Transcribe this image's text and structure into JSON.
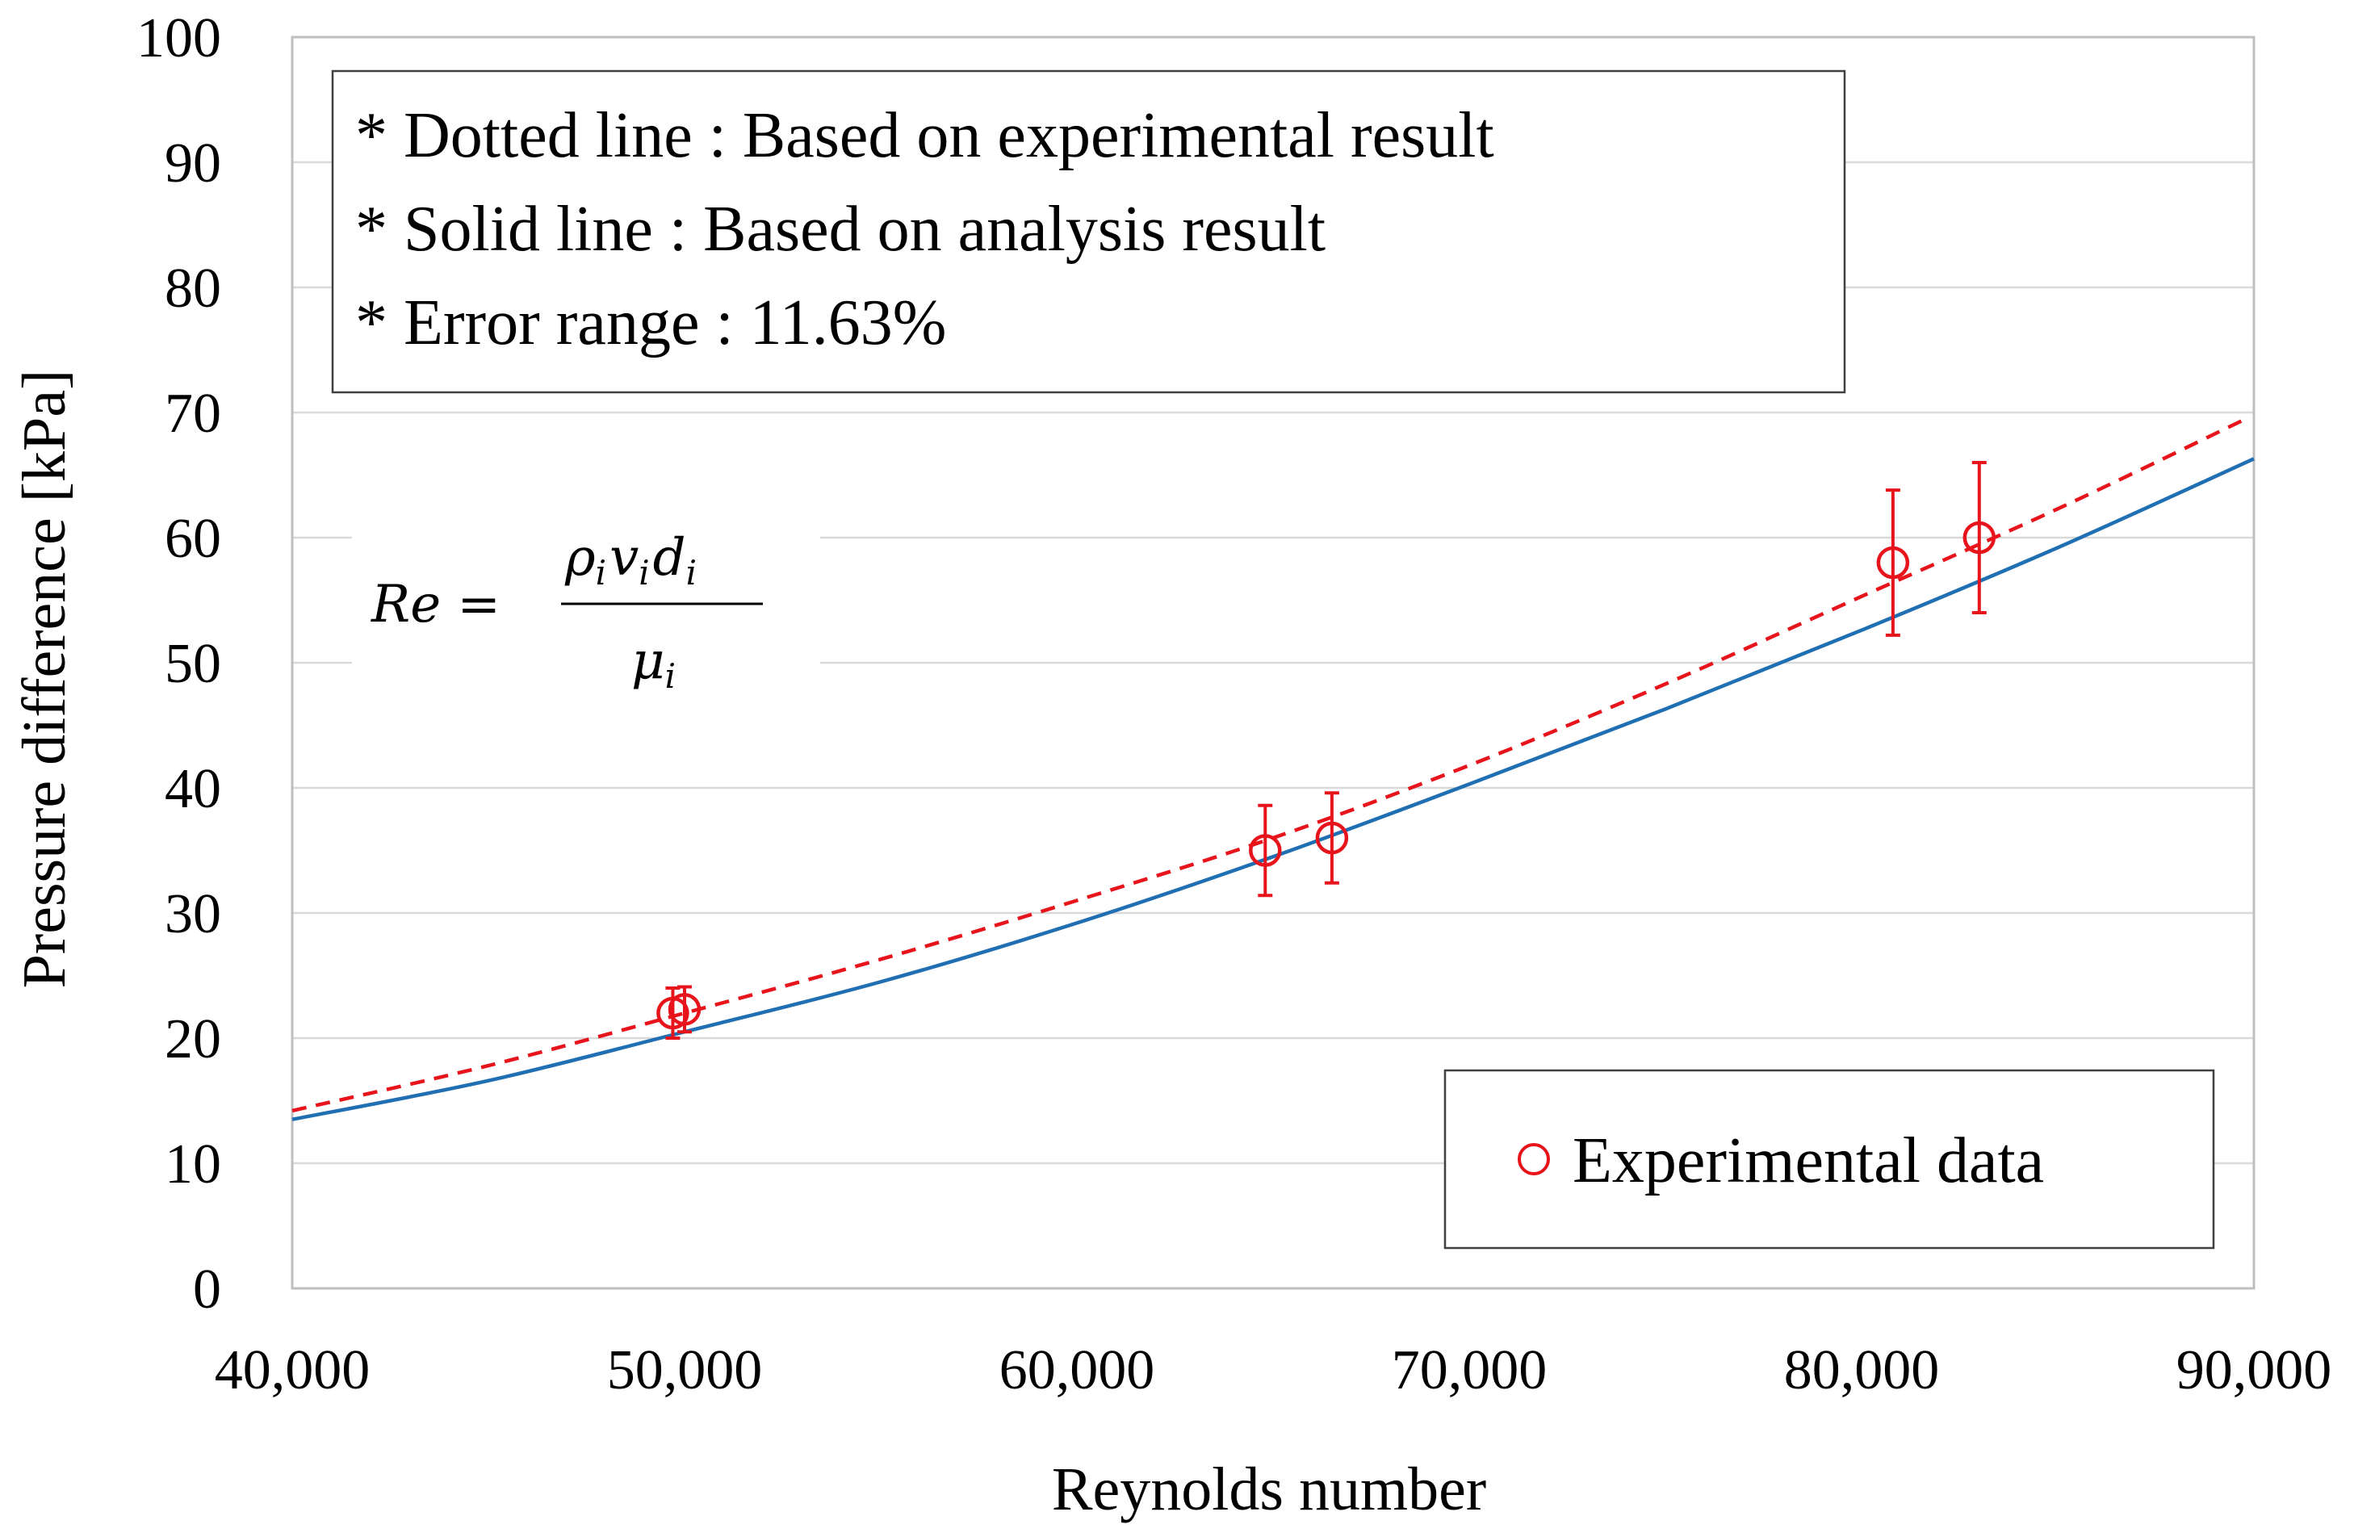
{
  "chart_data": {
    "type": "scatter",
    "title": "",
    "xlabel": "Reynolds number",
    "ylabel": "Pressure difference [kPa]",
    "xlim": [
      40000,
      90000
    ],
    "ylim": [
      0,
      100
    ],
    "x_ticks": [
      40000,
      50000,
      60000,
      70000,
      80000,
      90000
    ],
    "x_tick_labels": [
      "40,000",
      "50,000",
      "60,000",
      "70,000",
      "80,000",
      "90,000"
    ],
    "y_ticks": [
      0,
      10,
      20,
      30,
      40,
      50,
      60,
      70,
      80,
      90,
      100
    ],
    "y_tick_labels": [
      "0",
      "10",
      "20",
      "30",
      "40",
      "50",
      "60",
      "70",
      "80",
      "90",
      "100"
    ],
    "grid": "horizontal",
    "notes": [
      "* Dotted line : Based on experimental result",
      "* Solid line : Based on analysis result",
      "* Error range : 11.63%"
    ],
    "equation": {
      "lhs": "Re =",
      "numerator": [
        {
          "base": "ρ",
          "sub": "i"
        },
        {
          "base": "v",
          "sub": "i"
        },
        {
          "base": "d",
          "sub": "i"
        }
      ],
      "denominator": [
        {
          "base": "μ",
          "sub": "i"
        }
      ]
    },
    "legend": {
      "position": "bottom-right",
      "entries": [
        {
          "label": "Experimental data",
          "marker": "open-circle",
          "color": "#e8141c"
        }
      ]
    },
    "series": [
      {
        "name": "Experimental data",
        "kind": "scatter",
        "marker": "open-circle",
        "color": "#e8141c",
        "points": [
          {
            "x": 49700,
            "y": 22.0,
            "err": 2.0
          },
          {
            "x": 50000,
            "y": 22.3,
            "err": 1.8
          },
          {
            "x": 64800,
            "y": 35.0,
            "err": 3.6
          },
          {
            "x": 66500,
            "y": 36.0,
            "err": 3.6
          },
          {
            "x": 80800,
            "y": 58.0,
            "err": 5.8
          },
          {
            "x": 83000,
            "y": 60.0,
            "err": 6.0
          }
        ]
      },
      {
        "name": "Based on experimental result",
        "kind": "line",
        "style": "dashed",
        "color": "#e8141c",
        "x": [
          40000,
          45000,
          50000,
          55000,
          60000,
          65000,
          70000,
          75000,
          80000,
          85000,
          89800
        ],
        "y": [
          14.2,
          17.8,
          22.0,
          26.3,
          31.0,
          36.0,
          41.8,
          48.3,
          55.3,
          62.3,
          69.5
        ]
      },
      {
        "name": "Based on analysis result",
        "kind": "line",
        "style": "solid",
        "color": "#1f6fb2",
        "x": [
          40000,
          45000,
          50000,
          55000,
          60000,
          65000,
          70000,
          75000,
          80000,
          85000,
          90000
        ],
        "y": [
          13.5,
          16.6,
          20.5,
          24.5,
          29.2,
          34.5,
          40.3,
          46.3,
          52.6,
          59.2,
          66.3
        ]
      }
    ]
  }
}
